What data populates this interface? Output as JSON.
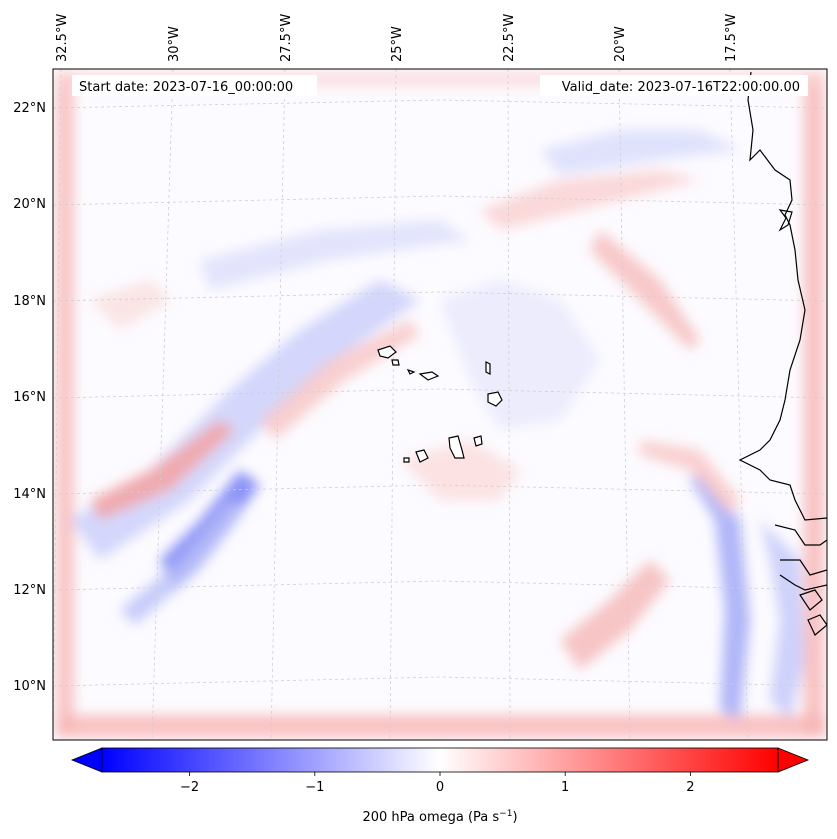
{
  "map": {
    "start_date_text": "Start date: 2023-07-16_00:00:00",
    "valid_date_text": "Valid_date: 2023-07-16T22:00:00.00",
    "lon_labels": [
      "32.5°W",
      "30°W",
      "27.5°W",
      "25°W",
      "22.5°W",
      "20°W",
      "17.5°W"
    ],
    "lat_labels": [
      "22°N",
      "20°N",
      "18°N",
      "16°N",
      "14°N",
      "12°N",
      "10°N"
    ],
    "projection_note": "",
    "land_features": [
      "Cabo Verde islands",
      "West African coastline"
    ]
  },
  "colorbar": {
    "label": "200 hPa omega (Pa s",
    "label_sup": "−1",
    "label_close": ")",
    "ticks": [
      "−2",
      "−1",
      "0",
      "1",
      "2"
    ],
    "tick_values": [
      -2,
      -1,
      0,
      1,
      2
    ],
    "min": -2.7,
    "max": 2.7,
    "extend": "both",
    "colormap": "bwr",
    "colors": {
      "low": "#0000ff",
      "mid": "#ffffff",
      "high": "#ff0000"
    }
  }
}
